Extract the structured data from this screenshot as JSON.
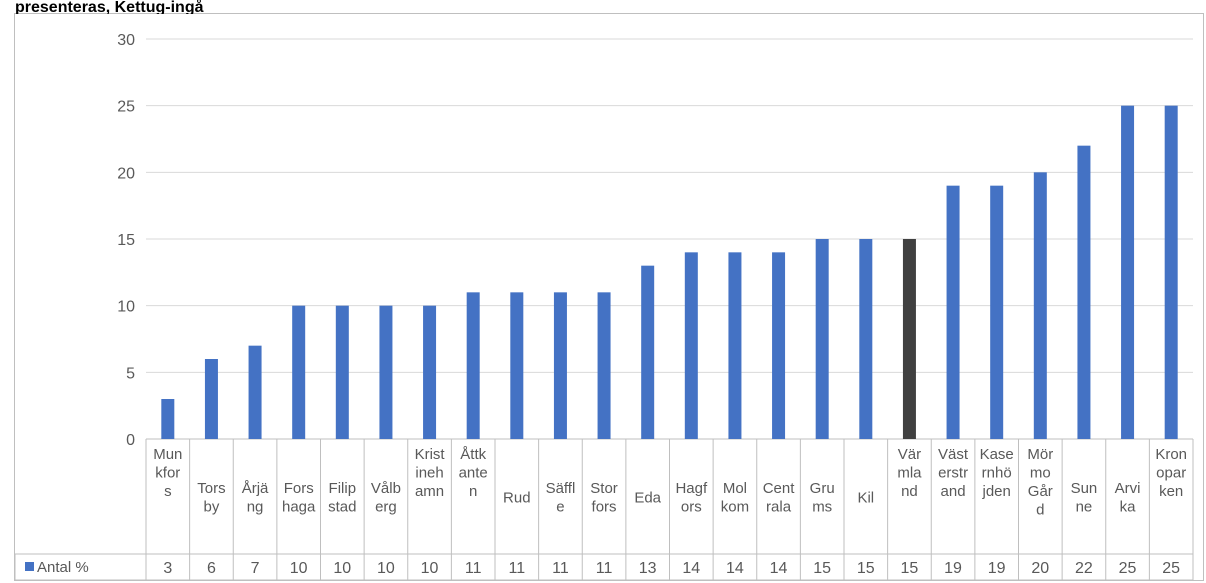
{
  "header_text": "presenteras, Kettug-ingå",
  "chart_data": {
    "type": "bar",
    "categories": [
      "Munkfors",
      "Torsby",
      "Årjäng",
      "Forshaga",
      "Filipstad",
      "Vålberg",
      "Kristinehamn",
      "Åttkanten",
      "Rud",
      "Säffle",
      "Storfors",
      "Eda",
      "Hagfors",
      "Molkom",
      "Centrala",
      "Grums",
      "Kil",
      "Värmland",
      "Västerstrand",
      "Kasernhöjden",
      "Mörmo Gård",
      "Sunne",
      "Arvika",
      "Kronoparken"
    ],
    "category_lines": [
      [
        "Mun",
        "kfor",
        "s"
      ],
      [
        "Tors",
        "by"
      ],
      [
        "Årjä",
        "ng"
      ],
      [
        "Fors",
        "haga"
      ],
      [
        "Filip",
        "stad"
      ],
      [
        "Vålb",
        "erg"
      ],
      [
        "Krist",
        "ineh",
        "amn"
      ],
      [
        "Åttk",
        "ante",
        "n"
      ],
      [
        "Rud"
      ],
      [
        "Säffl",
        "e"
      ],
      [
        "Stor",
        "fors"
      ],
      [
        "Eda"
      ],
      [
        "Hagf",
        "ors"
      ],
      [
        "Mol",
        "kom"
      ],
      [
        "Cent",
        "rala"
      ],
      [
        "Gru",
        "ms"
      ],
      [
        "Kil"
      ],
      [
        "Vär",
        "mla",
        "nd"
      ],
      [
        "Väst",
        "erstr",
        "and"
      ],
      [
        "Kase",
        "rnhö",
        "jden"
      ],
      [
        "Mör",
        "mo",
        "Går",
        "d"
      ],
      [
        "Sun",
        "ne"
      ],
      [
        "Arvi",
        "ka"
      ],
      [
        "Kron",
        "opar",
        "ken"
      ]
    ],
    "series": [
      {
        "name": "Antal %",
        "values": [
          3,
          6,
          7,
          10,
          10,
          10,
          10,
          11,
          11,
          11,
          11,
          13,
          14,
          14,
          14,
          15,
          15,
          15,
          19,
          19,
          20,
          22,
          25,
          25
        ]
      }
    ],
    "ylim": [
      0,
      30
    ],
    "yticks": [
      0,
      5,
      10,
      15,
      20,
      25,
      30
    ],
    "grid": true,
    "legend": "data-table",
    "colors": {
      "bar": "#4472c4",
      "highlight": "#404040",
      "grid": "#d9d9d9",
      "axis": "#bfbfbf",
      "text": "#595959"
    },
    "highlight_category": "Värmland"
  }
}
